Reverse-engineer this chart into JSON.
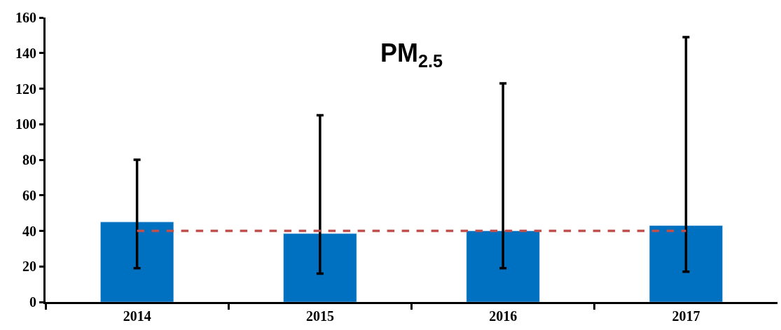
{
  "chart_data": {
    "type": "bar",
    "title": "PM$_{2.5}$",
    "categories": [
      "2014",
      "2015",
      "2016",
      "2017"
    ],
    "values": [
      45,
      38.5,
      40,
      43
    ],
    "color": "#0070c0",
    "errors": [
      [
        19,
        80
      ],
      [
        16,
        105
      ],
      [
        19,
        123
      ],
      [
        17,
        149
      ]
    ],
    "ylim": [
      0,
      160
    ],
    "yticks": [
      0,
      20,
      40,
      60,
      80,
      100,
      120,
      140,
      160
    ],
    "ref_lines": [
      {
        "axis": "y",
        "value": 40,
        "label": null,
        "color": "#c0504d",
        "line_style": "dashed"
      }
    ]
  }
}
